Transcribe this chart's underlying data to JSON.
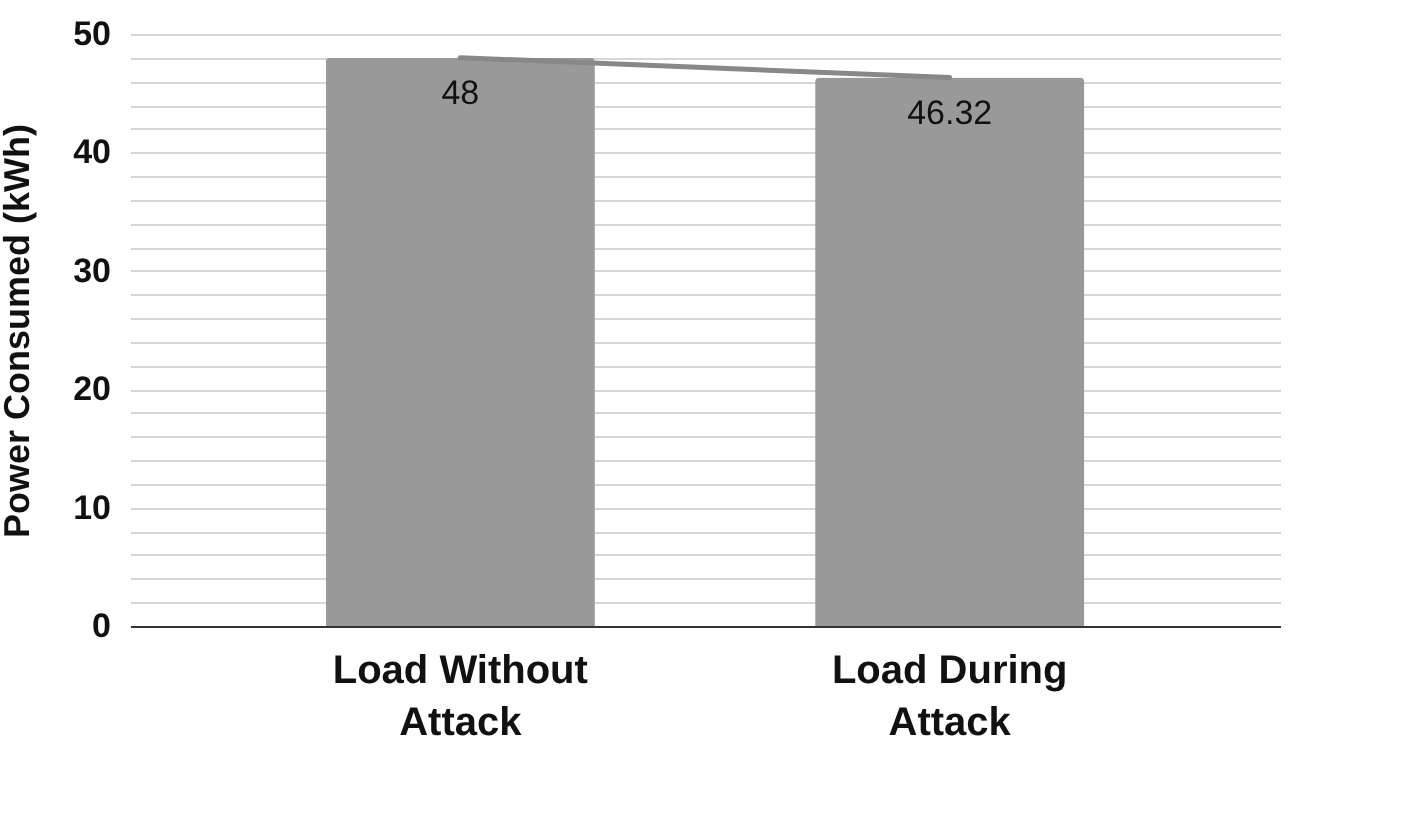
{
  "chart_data": {
    "type": "bar",
    "ylabel": "Power Consumed (kWh)",
    "categories": [
      "Load Without Attack",
      "Load During Attack"
    ],
    "series": [
      {
        "color": "#999999",
        "values": [
          48,
          46.32
        ],
        "value_labels": [
          "48",
          "46.32"
        ]
      },
      {
        "type": "line",
        "color": "#888888",
        "values": [
          48,
          46.32
        ]
      }
    ],
    "ylim": [
      0,
      50
    ],
    "yticks": [
      0,
      {
        "value": 2,
        "label": null
      },
      {
        "value": 4,
        "label": null
      },
      {
        "value": 6,
        "label": null
      },
      {
        "value": 8,
        "label": null
      },
      10,
      {
        "value": 12,
        "label": null
      },
      {
        "value": 14,
        "label": null
      },
      {
        "value": 16,
        "label": null
      },
      {
        "value": 18,
        "label": null
      },
      20,
      {
        "value": 22,
        "label": null
      },
      {
        "value": 24,
        "label": null
      },
      {
        "value": 26,
        "label": null
      },
      {
        "value": 28,
        "label": null
      },
      30,
      {
        "value": 32,
        "label": null
      },
      {
        "value": 34,
        "label": null
      },
      {
        "value": 36,
        "label": null
      },
      {
        "value": 38,
        "label": null
      },
      40,
      {
        "value": 42,
        "label": null
      },
      {
        "value": 44,
        "label": null
      },
      {
        "value": 46,
        "label": null
      },
      {
        "value": 48,
        "label": null
      },
      50
    ],
    "grid": "y"
  }
}
